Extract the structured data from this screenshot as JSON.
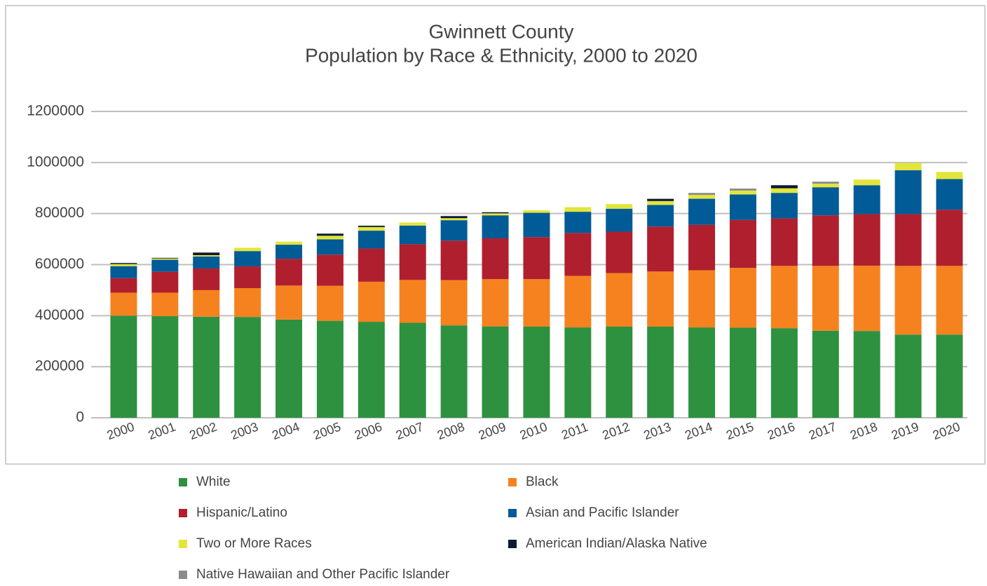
{
  "chart_data": {
    "type": "stacked_bar",
    "title": "Gwinnett County",
    "subtitle": "Population by Race & Ethnicity, 2000 to 2020",
    "categories": [
      "2000",
      "2001",
      "2002",
      "2003",
      "2004",
      "2005",
      "2006",
      "2007",
      "2008",
      "2009",
      "2010",
      "2011",
      "2012",
      "2013",
      "2014",
      "2015",
      "2016",
      "2017",
      "2018",
      "2019",
      "2020"
    ],
    "series": [
      {
        "name": "White",
        "color": "#2e9140",
        "values": [
          400000,
          398000,
          396000,
          395000,
          385000,
          380000,
          376000,
          372000,
          362000,
          358000,
          357000,
          354000,
          357000,
          357000,
          354000,
          353000,
          351000,
          341000,
          340000,
          326000,
          326000
        ]
      },
      {
        "name": "Black",
        "color": "#f5821f",
        "values": [
          90000,
          92000,
          104000,
          113000,
          133000,
          137000,
          157000,
          168000,
          177000,
          185000,
          186000,
          202000,
          210000,
          216000,
          224000,
          234000,
          244000,
          254000,
          256000,
          269000,
          269000
        ]
      },
      {
        "name": "Hispanic/Latino",
        "color": "#b01f2e",
        "values": [
          57000,
          82000,
          85000,
          85000,
          105000,
          122000,
          130000,
          140000,
          155000,
          160000,
          165000,
          168000,
          162000,
          176000,
          178000,
          188000,
          186000,
          198000,
          202000,
          203000,
          220000
        ]
      },
      {
        "name": "Asian and Pacific Islander",
        "color": "#005b96",
        "values": [
          47000,
          47000,
          47000,
          60000,
          55000,
          60000,
          70000,
          73000,
          80000,
          90000,
          95000,
          83000,
          90000,
          85000,
          102000,
          100000,
          100000,
          110000,
          113000,
          172000,
          120000
        ]
      },
      {
        "name": "Two or More Races",
        "color": "#e3e63a",
        "values": [
          8000,
          5000,
          5000,
          13000,
          12000,
          14000,
          14000,
          12000,
          8000,
          8000,
          10000,
          18000,
          18000,
          15000,
          15000,
          15000,
          18000,
          14000,
          22000,
          28000,
          28000
        ]
      },
      {
        "name": "American Indian/Alaska Native",
        "color": "#0d1a33",
        "values": [
          4000,
          2000,
          10000,
          0,
          0,
          8000,
          5000,
          0,
          8000,
          4000,
          0,
          0,
          0,
          8000,
          0,
          0,
          12000,
          0,
          0,
          0,
          0
        ]
      },
      {
        "name": "Native Hawaiian and Other Pacific Islander",
        "color": "#8c8c8c",
        "values": [
          1000,
          1000,
          1000,
          0,
          0,
          1000,
          1000,
          0,
          1000,
          1000,
          0,
          0,
          0,
          2000,
          8000,
          8000,
          0,
          8000,
          0,
          0,
          0
        ]
      }
    ],
    "ylim": [
      0,
      1200000
    ],
    "yticks": [
      0,
      200000,
      400000,
      600000,
      800000,
      1000000,
      1200000
    ],
    "grid": true,
    "legend": "bottom"
  }
}
